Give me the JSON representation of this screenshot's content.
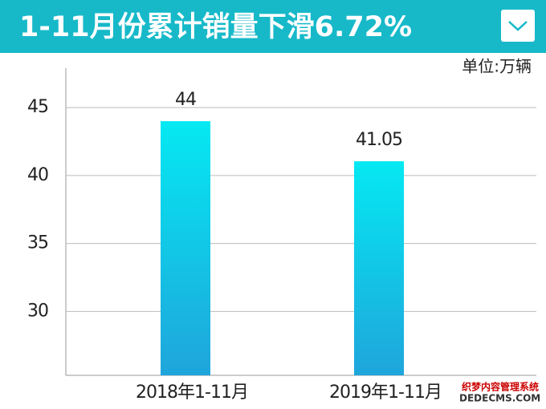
{
  "chart_data": {
    "type": "bar",
    "title": "1-11月份累计销量下滑6.72%",
    "unit": "单位:万辆",
    "categories": [
      "2018年1-11月",
      "2019年1-11月"
    ],
    "values": [
      44,
      41.05
    ],
    "gradient": [
      "#05e9f2",
      "#1fa5db"
    ],
    "ylim": [
      25.3,
      47.9
    ],
    "yticks": [
      30,
      35,
      40,
      45
    ],
    "grid": true,
    "watermark": [
      "织梦内容管理系统",
      "DEDECMS.COM"
    ]
  }
}
